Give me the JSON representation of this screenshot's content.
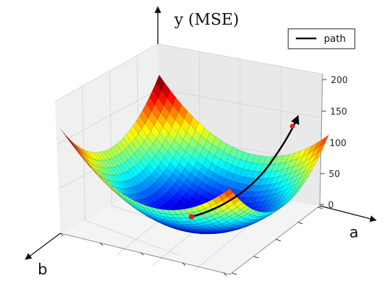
{
  "chart_data": {
    "type": "surface",
    "title": "",
    "zlabel": "y (MSE)",
    "xlabel": "a",
    "ylabel": "b",
    "z_ticks": [
      "200",
      "150",
      "100",
      "50",
      "0"
    ],
    "legend": {
      "label": "path",
      "placement": "top-right"
    },
    "colormap": "jet",
    "surface": "paraboloid",
    "zlim": [
      0,
      200
    ],
    "grid": true,
    "colors": {
      "path": "#000000",
      "points": "#e81a1a",
      "pane": "#f1f1f1",
      "grid": "#dadada"
    }
  }
}
